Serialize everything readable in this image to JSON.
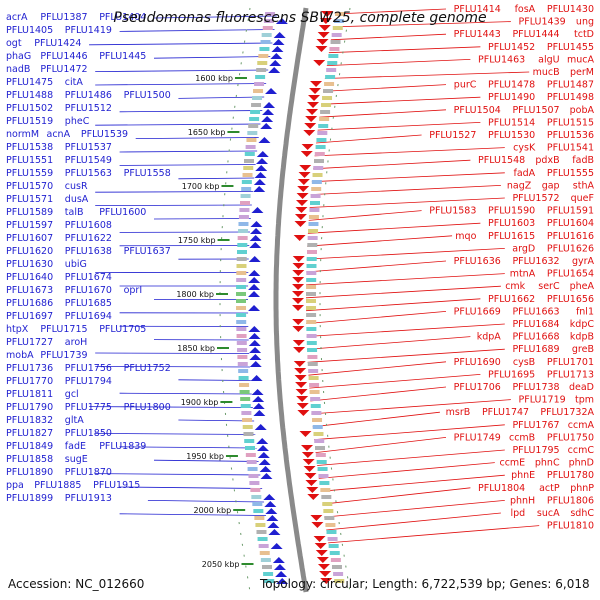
{
  "title": "Pseudomonas fluorescens SBW25, complete genome",
  "footer": {
    "accession": "Accession: NC_012660",
    "summary": "Topology: circular; Length: 6,722,539 bp; Genes: 6,018"
  },
  "colors": {
    "left_strand": "#1f1fd0",
    "right_strand": "#e01010",
    "backbone": "#8a8a8a",
    "tick": "#2e8b2e"
  },
  "map": {
    "kbp_ticks": [
      "1600 kbp",
      "1650 kbp",
      "1700 kbp",
      "1750 kbp",
      "1800 kbp",
      "1850 kbp",
      "1900 kbp",
      "1950 kbp",
      "2000 kbp",
      "2050 kbp"
    ],
    "left_labels": [
      "acrA",
      "PFLU1387",
      "PFLU1404",
      "PFLU1405",
      "PFLU1419",
      "ogt",
      "PFLU1424",
      "phaG",
      "PFLU1446",
      "PFLU1445",
      "nadB",
      "PFLU1472",
      "PFLU1475",
      "citA",
      "PFLU1488",
      "PFLU1486",
      "PFLU1500",
      "PFLU1502",
      "PFLU1512",
      "PFLU1519",
      "pheC",
      "normM",
      "acnA",
      "PFLU1539",
      "PFLU1538",
      "PFLU1537",
      "PFLU1551",
      "PFLU1549",
      "PFLU1559",
      "PFLU1563",
      "PFLU1558",
      "PFLU1570",
      "cusR",
      "PFLU1571",
      "dusA",
      "PFLU1589",
      "talB",
      "PFLU1600",
      "PFLU1597",
      "PFLU1608",
      "PFLU1607",
      "PFLU1622",
      "PFLU1620",
      "PFLU1638",
      "PFLU1637",
      "PFLU1630",
      "ubiG",
      "PFLU1640",
      "PFLU1674",
      "PFLU1673",
      "PFLU1670",
      "oprI",
      "PFLU1686",
      "PFLU1685",
      "PFLU1697",
      "PFLU1694",
      "htpX",
      "PFLU1715",
      "PFLU1705",
      "PFLU1727",
      "aroH",
      "mobA",
      "PFLU1739",
      "PFLU1736",
      "PFLU1756",
      "PFLU1752",
      "PFLU1770",
      "PFLU1794",
      "PFLU1811",
      "gcl",
      "PFLU1790",
      "PFLU1775",
      "PFLU1800",
      "PFLU1832",
      "gltA",
      "PFLU1827",
      "PFLU1850",
      "PFLU1849",
      "fadE",
      "PFLU1839",
      "PFLU1858",
      "sugE",
      "PFLU1890",
      "PFLU1870",
      "ppa",
      "PFLU1885",
      "PFLU1915",
      "PFLU1899",
      "PFLU1913"
    ],
    "right_labels": [
      "PFLU1414",
      "fosA",
      "PFLU1430",
      "PFLU1439",
      "ung",
      "PFLU1443",
      "PFLU1444",
      "tctD",
      "PFLU1452",
      "PFLU1455",
      "PFLU1463",
      "algU",
      "mucA",
      "mucB",
      "perM",
      "purC",
      "PFLU1478",
      "PFLU1487",
      "PFLU1490",
      "PFLU1498",
      "PFLU1504",
      "PFLU1507",
      "pobA",
      "PFLU1514",
      "PFLU1515",
      "PFLU1527",
      "PFLU1530",
      "PFLU1536",
      "cysK",
      "PFLU1541",
      "PFLU1548",
      "pdxB",
      "fadB",
      "fadA",
      "PFLU1555",
      "nagZ",
      "gap",
      "sthA",
      "PFLU1572",
      "queF",
      "PFLU1583",
      "PFLU1590",
      "PFLU1591",
      "PFLU1603",
      "PFLU1604",
      "mqo",
      "PFLU1615",
      "PFLU1616",
      "argD",
      "PFLU1626",
      "PFLU1636",
      "PFLU1632",
      "gyrA",
      "mtnA",
      "PFLU1654",
      "cmk",
      "serC",
      "pheA",
      "PFLU1662",
      "PFLU1656",
      "PFLU1669",
      "PFLU1663",
      "fnl1",
      "PFLU1684",
      "kdpC",
      "kdpA",
      "PFLU1668",
      "kdpB",
      "PFLU1689",
      "greB",
      "PFLU1690",
      "cysB",
      "PFLU1701",
      "PFLU1695",
      "PFLU1713",
      "PFLU1706",
      "PFLU1738",
      "deaD",
      "PFLU1719",
      "tpm",
      "msrB",
      "PFLU1747",
      "PFLU1732A",
      "PFLU1767",
      "ccmA",
      "PFLU1749",
      "ccmB",
      "PFLU1750",
      "PFLU1795",
      "ccmC",
      "ccmE",
      "phnC",
      "phnD",
      "phnE",
      "PFLU1780",
      "PFLU1804",
      "actP",
      "phnP",
      "phnH",
      "PFLU1806",
      "lpd",
      "sucA",
      "sdhC",
      "PFLU1810"
    ]
  }
}
